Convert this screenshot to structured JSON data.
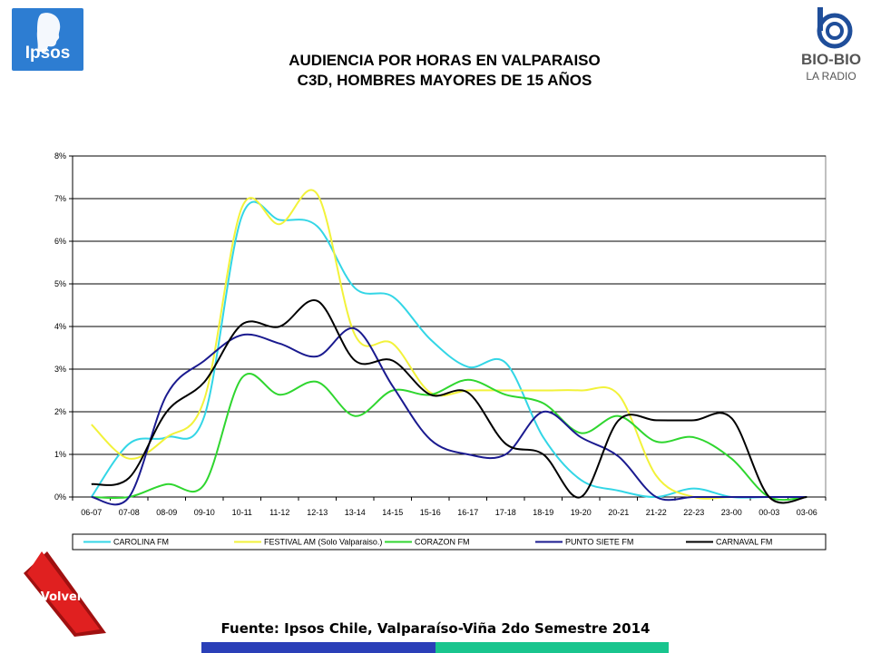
{
  "title": {
    "line1": "AUDIENCIA POR HORAS EN VALPARAISO",
    "line2": "C3D, HOMBRES MAYORES DE 15 AÑOS"
  },
  "logos": {
    "ipsos": "Ipsos",
    "bio_line1": "BIO-BIO",
    "bio_line2": "LA RADIO"
  },
  "source": "Fuente: Ipsos Chile, Valparaíso-Viña 2do Semestre 2014",
  "buttons": {
    "volver": "Volver"
  },
  "colors": {
    "bar_left": "#2a3fb8",
    "bar_right": "#19c58e",
    "volver_red": "#e02020",
    "ipsos_blue": "#2d7dd2",
    "bio_blue": "#1f4e9a"
  },
  "chart_data": {
    "type": "line",
    "categories": [
      "06-07",
      "07-08",
      "08-09",
      "09-10",
      "10-11",
      "11-12",
      "12-13",
      "13-14",
      "14-15",
      "15-16",
      "16-17",
      "17-18",
      "18-19",
      "19-20",
      "20-21",
      "21-22",
      "22-23",
      "23-00",
      "00-03",
      "03-06"
    ],
    "y_ticks": [
      "0%",
      "1%",
      "2%",
      "3%",
      "4%",
      "5%",
      "6%",
      "7%",
      "8%"
    ],
    "ylim": [
      0,
      8
    ],
    "grid": true,
    "legend_position": "bottom",
    "series": [
      {
        "name": "CAROLINA FM",
        "color": "#33d6e6",
        "values": [
          0.0,
          1.25,
          1.4,
          1.9,
          6.6,
          6.5,
          6.35,
          4.9,
          4.7,
          3.7,
          3.05,
          3.15,
          1.4,
          0.4,
          0.15,
          0.0,
          0.2,
          0.0,
          0.0,
          0.0
        ]
      },
      {
        "name": "FESTIVAL AM (Solo Valparaiso.)",
        "color": "#f2f23a",
        "values": [
          1.7,
          0.9,
          1.4,
          2.3,
          6.8,
          6.4,
          7.1,
          3.8,
          3.6,
          2.45,
          2.5,
          2.5,
          2.5,
          2.5,
          2.4,
          0.5,
          0.0,
          0.0,
          0.0,
          0.0
        ]
      },
      {
        "name": "CORAZON FM",
        "color": "#2fd62f",
        "values": [
          0.0,
          0.0,
          0.3,
          0.3,
          2.8,
          2.4,
          2.7,
          1.9,
          2.5,
          2.4,
          2.75,
          2.4,
          2.2,
          1.5,
          1.9,
          1.3,
          1.4,
          0.9,
          0.0,
          0.0
        ]
      },
      {
        "name": "PUNTO SIETE FM",
        "color": "#1a1a8f",
        "values": [
          0.0,
          0.0,
          2.4,
          3.2,
          3.8,
          3.6,
          3.3,
          3.95,
          2.6,
          1.35,
          1.0,
          1.0,
          2.0,
          1.4,
          0.95,
          0.0,
          0.0,
          0.0,
          0.0,
          0.0
        ]
      },
      {
        "name": "CARNAVAL FM",
        "color": "#000000",
        "values": [
          0.3,
          0.45,
          2.0,
          2.7,
          4.05,
          4.0,
          4.6,
          3.2,
          3.2,
          2.4,
          2.45,
          1.25,
          1.0,
          0.0,
          1.8,
          1.8,
          1.8,
          1.85,
          0.0,
          0.0
        ]
      }
    ]
  }
}
